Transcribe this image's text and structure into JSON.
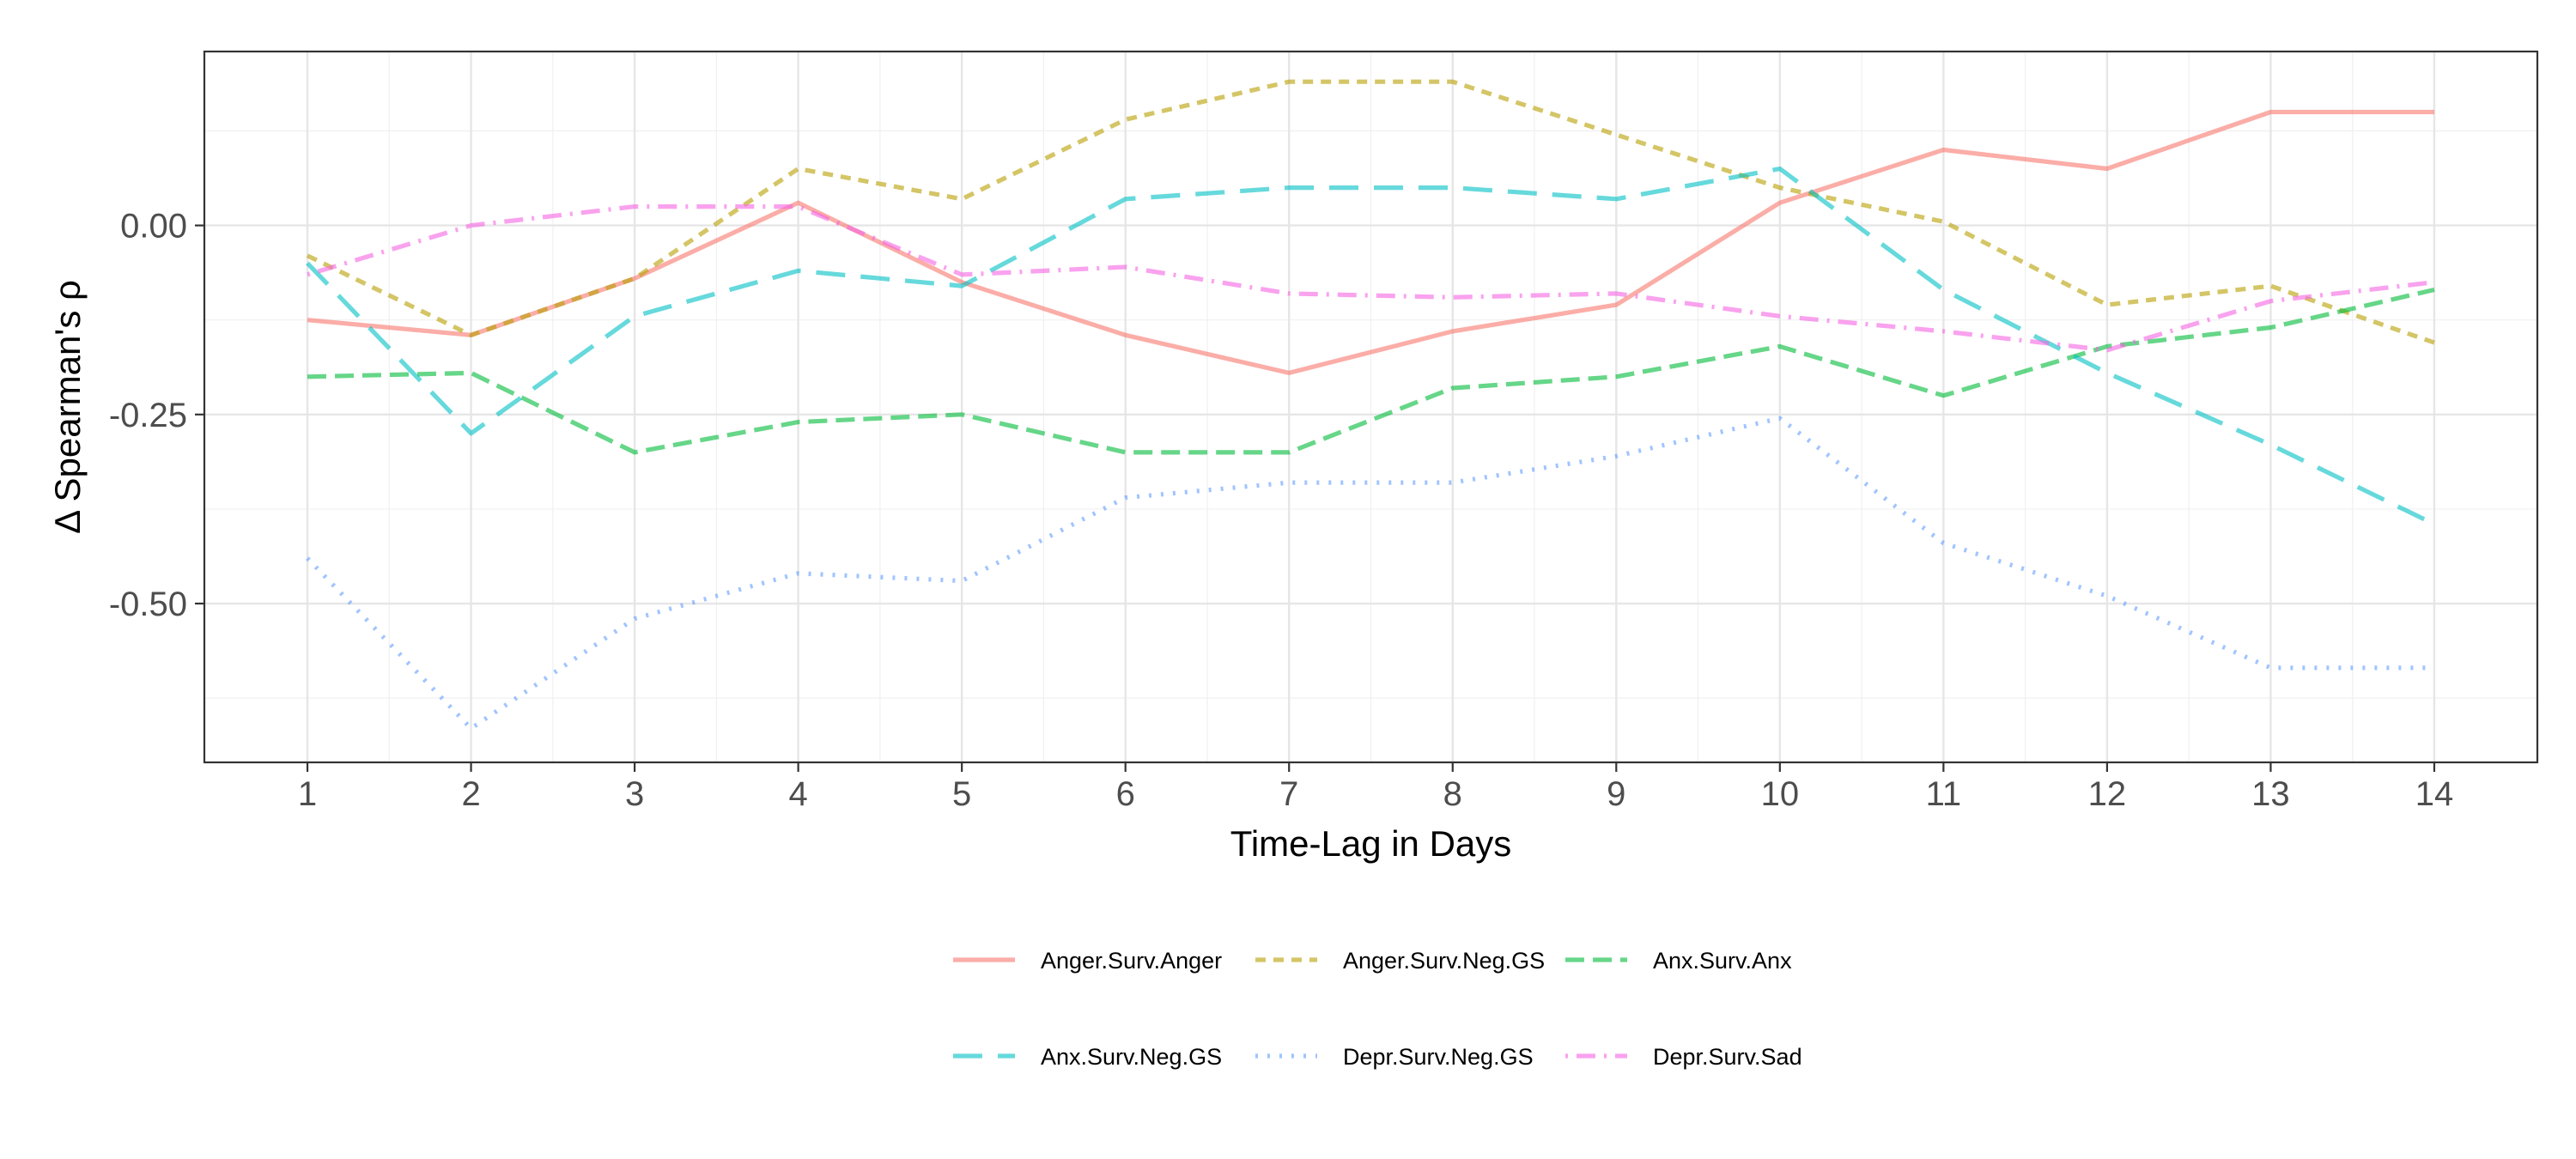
{
  "chart_data": {
    "type": "line",
    "title": "",
    "xlabel": "Time-Lag in Days",
    "ylabel": "Δ Spearman's ρ",
    "x": [
      1,
      2,
      3,
      4,
      5,
      6,
      7,
      8,
      9,
      10,
      11,
      12,
      13,
      14
    ],
    "x_tick_labels": [
      "1",
      "2",
      "3",
      "4",
      "5",
      "6",
      "7",
      "8",
      "9",
      "10",
      "11",
      "12",
      "13",
      "14"
    ],
    "y_ticks": [
      0.0,
      -0.25,
      -0.5
    ],
    "y_tick_labels": [
      "0.00",
      "-0.25",
      "-0.50"
    ],
    "xlim": [
      0.37,
      14.63
    ],
    "ylim": [
      -0.71,
      0.23
    ],
    "grid": true,
    "legend_position": "bottom",
    "series": [
      {
        "name": "Anger.Surv.Anger",
        "color": "#F8766D",
        "dash": "solid",
        "values": [
          -0.125,
          -0.145,
          -0.07,
          0.03,
          -0.075,
          -0.145,
          -0.195,
          -0.14,
          -0.105,
          0.03,
          0.1,
          0.075,
          0.15,
          0.15
        ]
      },
      {
        "name": "Anger.Surv.Neg.GS",
        "color": "#B79F00",
        "dash": "short-dash",
        "values": [
          -0.04,
          -0.145,
          -0.07,
          0.075,
          0.035,
          0.14,
          0.19,
          0.19,
          0.12,
          0.05,
          0.005,
          -0.105,
          -0.08,
          -0.155
        ]
      },
      {
        "name": "Anx.Surv.Anx",
        "color": "#00BA38",
        "dash": "dash",
        "values": [
          -0.2,
          -0.195,
          -0.3,
          -0.26,
          -0.25,
          -0.3,
          -0.3,
          -0.215,
          -0.2,
          -0.16,
          -0.225,
          -0.16,
          -0.135,
          -0.085
        ]
      },
      {
        "name": "Anx.Surv.Neg.GS",
        "color": "#00BFC4",
        "dash": "long-dash",
        "values": [
          -0.05,
          -0.275,
          -0.12,
          -0.06,
          -0.08,
          0.035,
          0.05,
          0.05,
          0.035,
          0.075,
          -0.085,
          -0.195,
          -0.29,
          -0.395
        ]
      },
      {
        "name": "Depr.Surv.Neg.GS",
        "color": "#619CFF",
        "dash": "dotted",
        "values": [
          -0.44,
          -0.665,
          -0.52,
          -0.46,
          -0.47,
          -0.36,
          -0.34,
          -0.34,
          -0.305,
          -0.255,
          -0.42,
          -0.49,
          -0.585,
          -0.585
        ]
      },
      {
        "name": "Depr.Surv.Sad",
        "color": "#F564E3",
        "dash": "dot-dash",
        "values": [
          -0.065,
          0.0,
          0.025,
          0.025,
          -0.065,
          -0.055,
          -0.09,
          -0.095,
          -0.09,
          -0.12,
          -0.14,
          -0.165,
          -0.1,
          -0.075
        ]
      }
    ]
  }
}
